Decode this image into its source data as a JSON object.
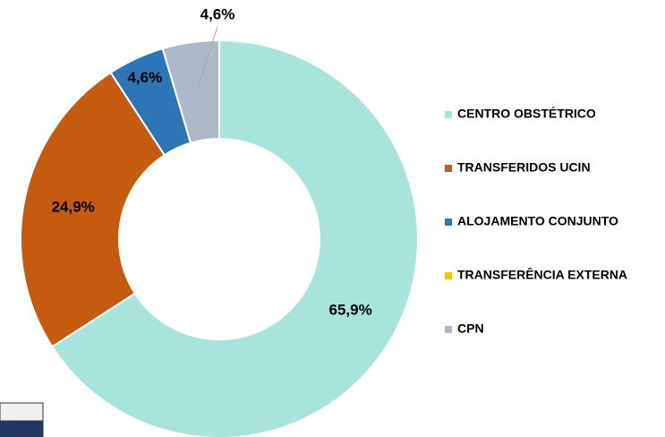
{
  "chart_data": {
    "type": "donut",
    "categories": [
      "CENTRO OBSTÉTRICO",
      "TRANSFERIDOS UCIN",
      "ALOJAMENTO CONJUNTO",
      "TRANSFERÊNCIA EXTERNA",
      "CPN"
    ],
    "values": [
      65.9,
      24.9,
      4.6,
      0,
      4.6
    ],
    "value_labels": [
      "65,9%",
      "24,9%",
      "4,6%",
      null,
      "4,6%"
    ],
    "colors": [
      "#a8e4dc",
      "#c55a11",
      "#2e75b6",
      "#ffc000",
      "#adb9ca"
    ],
    "legend": "right"
  }
}
